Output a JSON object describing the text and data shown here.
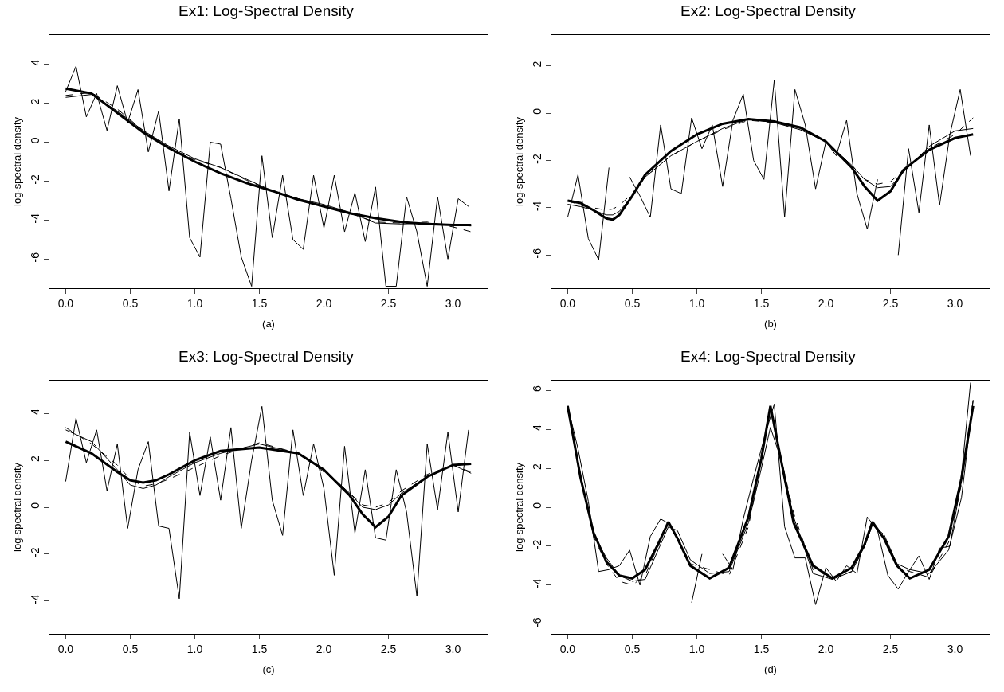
{
  "chart_data": [
    {
      "type": "line",
      "title": "Ex1: Log-Spectral Density",
      "xlabel": "(a)",
      "ylabel": "log-spectral density",
      "xlim": [
        -0.126,
        3.268
      ],
      "ylim": [
        -7.5,
        5.5
      ],
      "xticks": [
        {
          "value": 0,
          "label": "0.0"
        },
        0.5,
        {
          "value": 1,
          "label": "1.0"
        },
        1.5,
        {
          "value": 2,
          "label": "2.0"
        },
        2.5,
        {
          "value": 3,
          "label": "3.0"
        }
      ],
      "yticks": [
        -6,
        -4,
        -2,
        0,
        2,
        4
      ],
      "grid": false,
      "series": [
        {
          "color": "#000000",
          "line_style": "solid",
          "x": [
            0,
            0.08,
            0.16,
            0.24,
            0.32,
            0.4,
            0.48,
            0.56,
            0.64,
            0.72,
            0.8,
            0.88,
            0.96,
            1.04,
            1.12,
            1.2,
            1.28,
            1.36,
            1.44,
            1.52,
            1.6,
            1.68,
            1.76,
            1.84,
            1.92,
            2,
            2.08,
            2.16,
            2.24,
            2.32,
            2.4,
            2.48,
            2.56,
            2.64,
            2.72,
            2.8,
            2.88,
            2.96,
            3.04,
            3.12
          ],
          "values": [
            2.6,
            3.9,
            1.3,
            2.5,
            0.6,
            2.9,
            1.0,
            2.7,
            -0.5,
            1.6,
            -2.5,
            1.2,
            -4.9,
            -5.9,
            0.0,
            -0.1,
            -2.9,
            -5.9,
            -7.4,
            -0.7,
            -4.9,
            -1.7,
            -5.0,
            -5.5,
            -1.7,
            -4.4,
            -1.7,
            -4.6,
            -2.6,
            -5.1,
            -2.3,
            -7.4,
            -7.4,
            -2.8,
            -4.6,
            -7.4,
            -2.8,
            -6.0,
            -2.9,
            -3.3
          ]
        },
        {
          "color": "#000000",
          "line_style": "solid",
          "x": [
            0,
            0.2,
            0.4,
            0.6,
            0.8,
            1.0,
            1.2,
            1.4,
            1.6,
            1.8,
            2.0,
            2.2,
            2.4,
            2.6,
            2.8,
            3.0,
            3.14
          ],
          "values": [
            2.75,
            2.5,
            1.5,
            0.5,
            -0.3,
            -1.0,
            -1.6,
            -2.1,
            -2.5,
            -2.95,
            -3.3,
            -3.65,
            -3.9,
            -4.1,
            -4.2,
            -4.25,
            -4.25
          ]
        },
        {
          "color": "#000000",
          "line_style": "solid",
          "x": [
            0,
            0.2,
            0.4,
            0.6,
            0.8,
            1.0,
            1.2,
            1.4,
            1.6,
            1.8,
            2.0,
            2.2,
            2.4,
            2.6,
            2.8,
            3.0,
            3.14
          ],
          "values": [
            2.3,
            2.45,
            1.6,
            0.6,
            -0.2,
            -0.85,
            -1.3,
            -1.9,
            -2.5,
            -2.9,
            -3.2,
            -3.6,
            -4.15,
            -4.2,
            -4.15,
            -4.25,
            -4.3
          ]
        },
        {
          "color": "#000000",
          "line_style": "dashed",
          "x": [
            0,
            0.2,
            0.4,
            0.6,
            0.8,
            1.0,
            1.2,
            1.4,
            1.6,
            1.8,
            2.0,
            2.2,
            2.4,
            2.6,
            2.8,
            3.0,
            3.14
          ],
          "values": [
            2.4,
            2.55,
            1.7,
            0.6,
            -0.3,
            -0.9,
            -1.3,
            -1.95,
            -2.5,
            -2.9,
            -3.3,
            -3.65,
            -4.1,
            -4.15,
            -4.1,
            -4.35,
            -4.6
          ]
        }
      ]
    },
    {
      "type": "line",
      "title": "Ex2: Log-Spectral Density",
      "xlabel": "(b)",
      "ylabel": "log-spectral density",
      "xlim": [
        -0.126,
        3.268
      ],
      "ylim": [
        -7.4,
        3.3
      ],
      "xticks": [
        {
          "value": 0,
          "label": "0.0"
        },
        0.5,
        {
          "value": 1,
          "label": "1.0"
        },
        1.5,
        {
          "value": 2,
          "label": "2.0"
        },
        2.5,
        {
          "value": 3,
          "label": "3.0"
        }
      ],
      "yticks": [
        -6,
        -4,
        -2,
        0,
        2
      ],
      "grid": false,
      "series": [
        {
          "color": "#000000",
          "line_style": "solid",
          "x": [
            0,
            0.08,
            0.16,
            0.24,
            0.32,
            0.4,
            0.48,
            0.56,
            0.64,
            0.72,
            0.8,
            0.88,
            0.96,
            1.04,
            1.12,
            1.2,
            1.28,
            1.36,
            1.44,
            1.52,
            1.6,
            1.68,
            1.76,
            1.84,
            1.92,
            2,
            2.08,
            2.16,
            2.24,
            2.32,
            2.4,
            2.48,
            2.56,
            2.64,
            2.72,
            2.8,
            2.88,
            2.96,
            3.04,
            3.12
          ],
          "values": [
            -4.4,
            -2.6,
            -5.3,
            -6.2,
            -2.3,
            null,
            -2.7,
            -3.5,
            -4.4,
            -0.5,
            -3.2,
            -3.4,
            -0.2,
            -1.5,
            -0.5,
            -3.1,
            -0.3,
            0.8,
            -2.0,
            -2.8,
            1.4,
            -4.4,
            1.0,
            -0.5,
            -3.2,
            -1.2,
            -1.8,
            -0.3,
            -3.4,
            -4.9,
            -2.8,
            null,
            -6.0,
            -1.5,
            -4.2,
            -0.5,
            -3.9,
            -0.9,
            1.0,
            -1.8
          ]
        },
        {
          "color": "#000000",
          "line_style": "solid",
          "x": [
            0,
            0.1,
            0.2,
            0.3,
            0.35,
            0.4,
            0.5,
            0.6,
            0.8,
            1.0,
            1.2,
            1.4,
            1.6,
            1.8,
            2.0,
            2.2,
            2.3,
            2.4,
            2.5,
            2.6,
            2.8,
            3.0,
            3.14
          ],
          "values": [
            -3.7,
            -3.8,
            -4.1,
            -4.45,
            -4.5,
            -4.3,
            -3.5,
            -2.6,
            -1.6,
            -0.9,
            -0.45,
            -0.25,
            -0.35,
            -0.6,
            -1.2,
            -2.3,
            -3.1,
            -3.7,
            -3.3,
            -2.4,
            -1.55,
            -1.05,
            -0.9
          ]
        },
        {
          "color": "#000000",
          "line_style": "solid",
          "x": [
            0,
            0.1,
            0.2,
            0.3,
            0.35,
            0.4,
            0.5,
            0.6,
            0.8,
            1.0,
            1.2,
            1.4,
            1.6,
            1.8,
            2.0,
            2.2,
            2.3,
            2.4,
            2.5,
            2.6,
            2.8,
            3.0,
            3.14
          ],
          "values": [
            -3.85,
            -3.95,
            -4.1,
            -4.3,
            -4.3,
            -4.15,
            -3.5,
            -2.7,
            -1.8,
            -1.2,
            -0.65,
            -0.25,
            -0.4,
            -0.7,
            -1.2,
            -2.2,
            -2.8,
            -3.15,
            -3.1,
            -2.5,
            -1.4,
            -0.75,
            -0.65
          ]
        },
        {
          "color": "#000000",
          "line_style": "dashed",
          "x": [
            0,
            0.1,
            0.2,
            0.3,
            0.35,
            0.4,
            0.5,
            0.6,
            0.8,
            1.0,
            1.2,
            1.4,
            1.6,
            1.8,
            2.0,
            2.2,
            2.3,
            2.4,
            2.5,
            2.6,
            2.8,
            3.0,
            3.14
          ],
          "values": [
            -3.7,
            -3.9,
            -4.0,
            -4.1,
            -4.05,
            -3.9,
            -3.4,
            -2.7,
            -1.8,
            -1.2,
            -0.7,
            -0.3,
            -0.4,
            -0.65,
            -1.2,
            -2.2,
            -2.8,
            -3.0,
            -2.9,
            -2.4,
            -1.5,
            -0.9,
            -0.2
          ]
        }
      ]
    },
    {
      "type": "line",
      "title": "Ex3: Log-Spectral Density",
      "xlabel": "(c)",
      "ylabel": "log-spectral density",
      "xlim": [
        -0.126,
        3.268
      ],
      "ylim": [
        -5.4,
        5.4
      ],
      "xticks": [
        {
          "value": 0,
          "label": "0.0"
        },
        0.5,
        {
          "value": 1,
          "label": "1.0"
        },
        1.5,
        {
          "value": 2,
          "label": "2.0"
        },
        2.5,
        {
          "value": 3,
          "label": "3.0"
        }
      ],
      "yticks": [
        -4,
        -2,
        0,
        2,
        4
      ],
      "grid": false,
      "series": [
        {
          "color": "#000000",
          "line_style": "solid",
          "x": [
            0,
            0.08,
            0.16,
            0.24,
            0.32,
            0.4,
            0.48,
            0.56,
            0.64,
            0.72,
            0.8,
            0.88,
            0.96,
            1.04,
            1.12,
            1.2,
            1.28,
            1.36,
            1.44,
            1.52,
            1.6,
            1.68,
            1.76,
            1.84,
            1.92,
            2,
            2.08,
            2.16,
            2.24,
            2.32,
            2.4,
            2.48,
            2.56,
            2.64,
            2.72,
            2.8,
            2.88,
            2.96,
            3.04,
            3.12
          ],
          "values": [
            1.1,
            3.8,
            1.9,
            3.3,
            0.7,
            2.7,
            -0.9,
            1.6,
            2.8,
            -0.8,
            -0.9,
            -3.9,
            3.2,
            0.5,
            3.0,
            0.3,
            3.4,
            -0.9,
            2.0,
            4.3,
            0.3,
            -1.2,
            3.3,
            0.5,
            2.7,
            0.8,
            -2.9,
            2.6,
            -1.1,
            1.6,
            -1.3,
            -1.4,
            1.6,
            -0.2,
            -3.8,
            2.7,
            -0.1,
            3.2,
            -0.2,
            3.3
          ]
        },
        {
          "color": "#000000",
          "line_style": "solid",
          "x": [
            0,
            0.2,
            0.4,
            0.5,
            0.6,
            0.7,
            0.8,
            1.0,
            1.2,
            1.5,
            1.8,
            2.0,
            2.2,
            2.3,
            2.4,
            2.5,
            2.6,
            2.8,
            3.0,
            3.14
          ],
          "values": [
            2.8,
            2.3,
            1.5,
            1.15,
            1.05,
            1.15,
            1.4,
            2.0,
            2.4,
            2.55,
            2.3,
            1.6,
            0.5,
            -0.3,
            -0.85,
            -0.4,
            0.5,
            1.3,
            1.8,
            1.85
          ]
        },
        {
          "color": "#000000",
          "line_style": "solid",
          "x": [
            0,
            0.2,
            0.4,
            0.5,
            0.6,
            0.7,
            0.8,
            1.0,
            1.2,
            1.5,
            1.8,
            2.0,
            2.2,
            2.3,
            2.4,
            2.5,
            2.6,
            2.8,
            3.0,
            3.14
          ],
          "values": [
            3.3,
            2.8,
            1.6,
            0.95,
            0.8,
            0.95,
            1.3,
            1.9,
            2.3,
            2.7,
            2.3,
            1.6,
            0.6,
            0.0,
            -0.1,
            0.1,
            0.6,
            1.3,
            1.8,
            1.45
          ]
        },
        {
          "color": "#000000",
          "line_style": "dashed",
          "x": [
            0,
            0.2,
            0.4,
            0.5,
            0.6,
            0.7,
            0.8,
            1.0,
            1.2,
            1.5,
            1.8,
            2.0,
            2.2,
            2.3,
            2.4,
            2.5,
            2.6,
            2.8,
            3.0,
            3.14
          ],
          "values": [
            3.4,
            2.7,
            1.8,
            1.2,
            0.9,
            1.0,
            1.2,
            1.7,
            2.2,
            2.75,
            2.3,
            1.5,
            0.6,
            0.1,
            0.0,
            0.2,
            0.7,
            1.4,
            1.8,
            1.5
          ]
        }
      ]
    },
    {
      "type": "line",
      "title": "Ex4: Log-Spectral Density",
      "xlabel": "(d)",
      "ylabel": "log-spectral density",
      "xlim": [
        -0.126,
        3.268
      ],
      "ylim": [
        -6.5,
        6.5
      ],
      "xticks": [
        {
          "value": 0,
          "label": "0.0"
        },
        0.5,
        {
          "value": 1,
          "label": "1.0"
        },
        1.5,
        {
          "value": 2,
          "label": "2.0"
        },
        2.5,
        {
          "value": 3,
          "label": "3.0"
        }
      ],
      "yticks": [
        -6,
        -4,
        -2,
        0,
        2,
        4,
        6
      ],
      "grid": false,
      "series": [
        {
          "color": "#000000",
          "line_style": "solid",
          "x": [
            0,
            0.08,
            0.16,
            0.24,
            0.32,
            0.4,
            0.48,
            0.56,
            0.64,
            0.72,
            0.8,
            0.88,
            0.96,
            1.04,
            1.12,
            1.2,
            1.28,
            1.36,
            1.44,
            1.52,
            1.6,
            1.68,
            1.76,
            1.84,
            1.92,
            2,
            2.08,
            2.16,
            2.24,
            2.32,
            2.4,
            2.48,
            2.56,
            2.64,
            2.72,
            2.8,
            2.88,
            2.96,
            3.04,
            3.12
          ],
          "values": [
            5.2,
            3.0,
            0.3,
            -3.3,
            -3.2,
            -3.0,
            -2.2,
            -4.0,
            -1.5,
            -0.6,
            -0.9,
            null,
            -4.9,
            -2.4,
            null,
            -2.4,
            -3.2,
            -0.6,
            1.5,
            3.5,
            5.3,
            -1.0,
            -2.6,
            -2.6,
            -5.0,
            -3.1,
            -3.8,
            -3.0,
            -3.4,
            -0.5,
            -1.2,
            -3.5,
            -4.2,
            -3.3,
            -2.5,
            -3.7,
            -2.1,
            -2.0,
            1.0,
            6.4
          ]
        },
        {
          "color": "#000000",
          "line_style": "solid",
          "x": [
            0,
            0.1,
            0.2,
            0.3,
            0.4,
            0.5,
            0.6,
            0.7,
            0.78,
            0.85,
            0.95,
            1.1,
            1.25,
            1.4,
            1.5,
            1.57,
            1.65,
            1.75,
            1.9,
            2.05,
            2.2,
            2.3,
            2.36,
            2.45,
            2.55,
            2.65,
            2.8,
            2.95,
            3.05,
            3.14
          ],
          "values": [
            5.2,
            1.5,
            -1.3,
            -2.8,
            -3.5,
            -3.65,
            -3.2,
            -1.9,
            -0.75,
            -1.6,
            -3.0,
            -3.65,
            -3.1,
            -0.5,
            2.5,
            5.2,
            2.5,
            -0.8,
            -3.0,
            -3.65,
            -3.1,
            -1.9,
            -0.75,
            -1.6,
            -3.0,
            -3.65,
            -3.2,
            -1.5,
            1.5,
            5.2
          ]
        },
        {
          "color": "#000000",
          "line_style": "solid",
          "x": [
            0,
            0.1,
            0.2,
            0.3,
            0.4,
            0.5,
            0.6,
            0.7,
            0.78,
            0.85,
            0.95,
            1.1,
            1.25,
            1.4,
            1.5,
            1.57,
            1.65,
            1.75,
            1.9,
            2.05,
            2.2,
            2.3,
            2.36,
            2.45,
            2.55,
            2.65,
            2.8,
            2.95,
            3.05,
            3.14
          ],
          "values": [
            5.0,
            1.7,
            -1.4,
            -2.6,
            -3.5,
            -3.8,
            -3.7,
            -2.2,
            -1.0,
            -1.2,
            -2.7,
            -3.4,
            -3.3,
            -0.8,
            2.0,
            4.1,
            2.5,
            -0.5,
            -3.4,
            -3.7,
            -3.3,
            -2.0,
            -0.9,
            -1.4,
            -2.9,
            -3.2,
            -3.4,
            -2.2,
            0.5,
            5.5
          ]
        },
        {
          "color": "#000000",
          "line_style": "dashed",
          "x": [
            0,
            0.1,
            0.2,
            0.3,
            0.4,
            0.5,
            0.6,
            0.7,
            0.78,
            0.85,
            0.95,
            1.1,
            1.25,
            1.4,
            1.5,
            1.57,
            1.65,
            1.75,
            1.9,
            2.05,
            2.2,
            2.3,
            2.36,
            2.45,
            2.55,
            2.65,
            2.8,
            2.95,
            3.05,
            3.14
          ],
          "values": [
            5.1,
            1.6,
            -1.5,
            -2.9,
            -3.8,
            -4.0,
            -3.5,
            -2.0,
            -0.8,
            -1.5,
            -2.9,
            -3.2,
            -3.5,
            -1.0,
            2.4,
            5.0,
            2.6,
            -0.3,
            -3.2,
            -3.6,
            -3.3,
            -2.0,
            -0.9,
            -1.5,
            -3.0,
            -3.3,
            -3.6,
            -1.8,
            1.2,
            5.5
          ]
        }
      ]
    }
  ]
}
